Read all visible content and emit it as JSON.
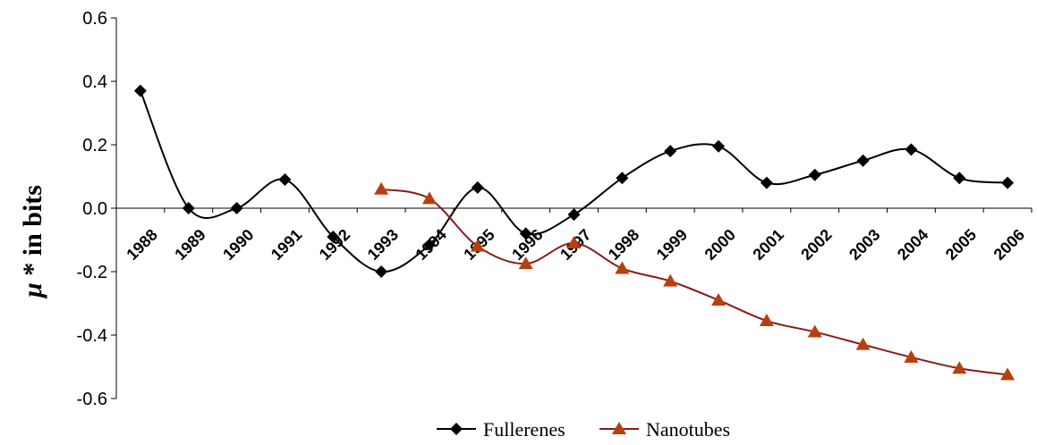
{
  "chart_data": {
    "type": "line",
    "title": "",
    "xlabel": "",
    "ylabel": "μ * in bits",
    "ylabel_parts": {
      "symbol": "μ",
      "rest": " * in bits"
    },
    "ylim": [
      -0.6,
      0.6
    ],
    "yticks": [
      "0.6",
      "0.4",
      "0.2",
      "0.0",
      "-0.2",
      "-0.4",
      "-0.6"
    ],
    "ytick_values": [
      0.6,
      0.4,
      0.2,
      0.0,
      -0.2,
      -0.4,
      -0.6
    ],
    "categories": [
      "1988",
      "1989",
      "1990",
      "1991",
      "1992",
      "1993",
      "1994",
      "1995",
      "1996",
      "1997",
      "1998",
      "1999",
      "2000",
      "2001",
      "2002",
      "2003",
      "2004",
      "2005",
      "2006"
    ],
    "grid": false,
    "legend_position": "bottom",
    "series": [
      {
        "name": "Fullerenes",
        "color": "#000000",
        "marker": "diamond",
        "values": [
          0.37,
          0.0,
          0.0,
          0.09,
          -0.09,
          -0.2,
          -0.115,
          0.065,
          -0.08,
          -0.02,
          0.095,
          0.18,
          0.195,
          0.08,
          0.105,
          0.15,
          0.185,
          0.095,
          0.08
        ]
      },
      {
        "name": "Nanotubes",
        "color": "#8b1a1a",
        "marker_color": "#b5400e",
        "marker": "triangle",
        "values": [
          null,
          null,
          null,
          null,
          null,
          0.06,
          0.03,
          -0.12,
          -0.175,
          -0.11,
          -0.19,
          -0.23,
          -0.29,
          -0.355,
          -0.39,
          -0.43,
          -0.47,
          -0.505,
          -0.525
        ]
      }
    ]
  }
}
